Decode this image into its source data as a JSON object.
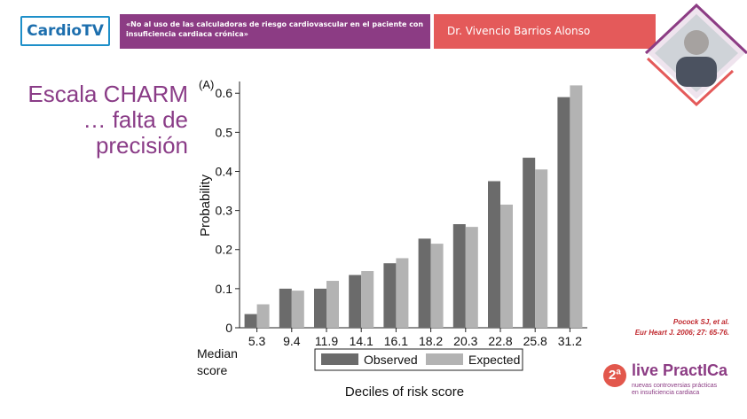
{
  "header": {
    "logo": "CardioTV",
    "talk_title_line1": "«No al uso de las calculadoras de riesgo cardiovascular en el paciente con",
    "talk_title_line2": "insuficiencia cardiaca crónica»",
    "speaker": "Dr. Vivencio Barrios Alonso",
    "bar_color": "#8c3c84",
    "speaker_bar_color": "#e45a5a"
  },
  "slide": {
    "title_line1": "Escala CHARM",
    "title_line2": "… falta de",
    "title_line3": "precisión"
  },
  "citation": {
    "line1": "Pocock SJ, et al.",
    "line2": "Eur Heart J. 2006; 27: 65-76."
  },
  "event": {
    "edition": "2ª",
    "name": "live PractICa",
    "sub1": "nuevas controversias prácticas",
    "sub2": "en insuficiencia cardiaca"
  },
  "chart_data": {
    "type": "bar",
    "panel_label": "(A)",
    "ylabel": "Probability",
    "xlabel": "Deciles of risk score",
    "xaxis_caption": "Median score",
    "categories": [
      "5.3",
      "9.4",
      "11.9",
      "14.1",
      "16.1",
      "18.2",
      "20.3",
      "22.8",
      "25.8",
      "31.2"
    ],
    "series": [
      {
        "name": "Observed",
        "color": "#6b6b6b",
        "values": [
          0.035,
          0.1,
          0.1,
          0.135,
          0.165,
          0.228,
          0.265,
          0.375,
          0.435,
          0.59
        ]
      },
      {
        "name": "Expected",
        "color": "#b3b3b3",
        "values": [
          0.06,
          0.095,
          0.12,
          0.145,
          0.178,
          0.215,
          0.258,
          0.315,
          0.405,
          0.62
        ]
      }
    ],
    "yticks": [
      "0",
      "0.1",
      "0.2",
      "0.3",
      "0.4",
      "0.5",
      "0.6"
    ],
    "ylim": [
      0,
      0.63
    ],
    "grid": false,
    "legend_position": "bottom"
  }
}
